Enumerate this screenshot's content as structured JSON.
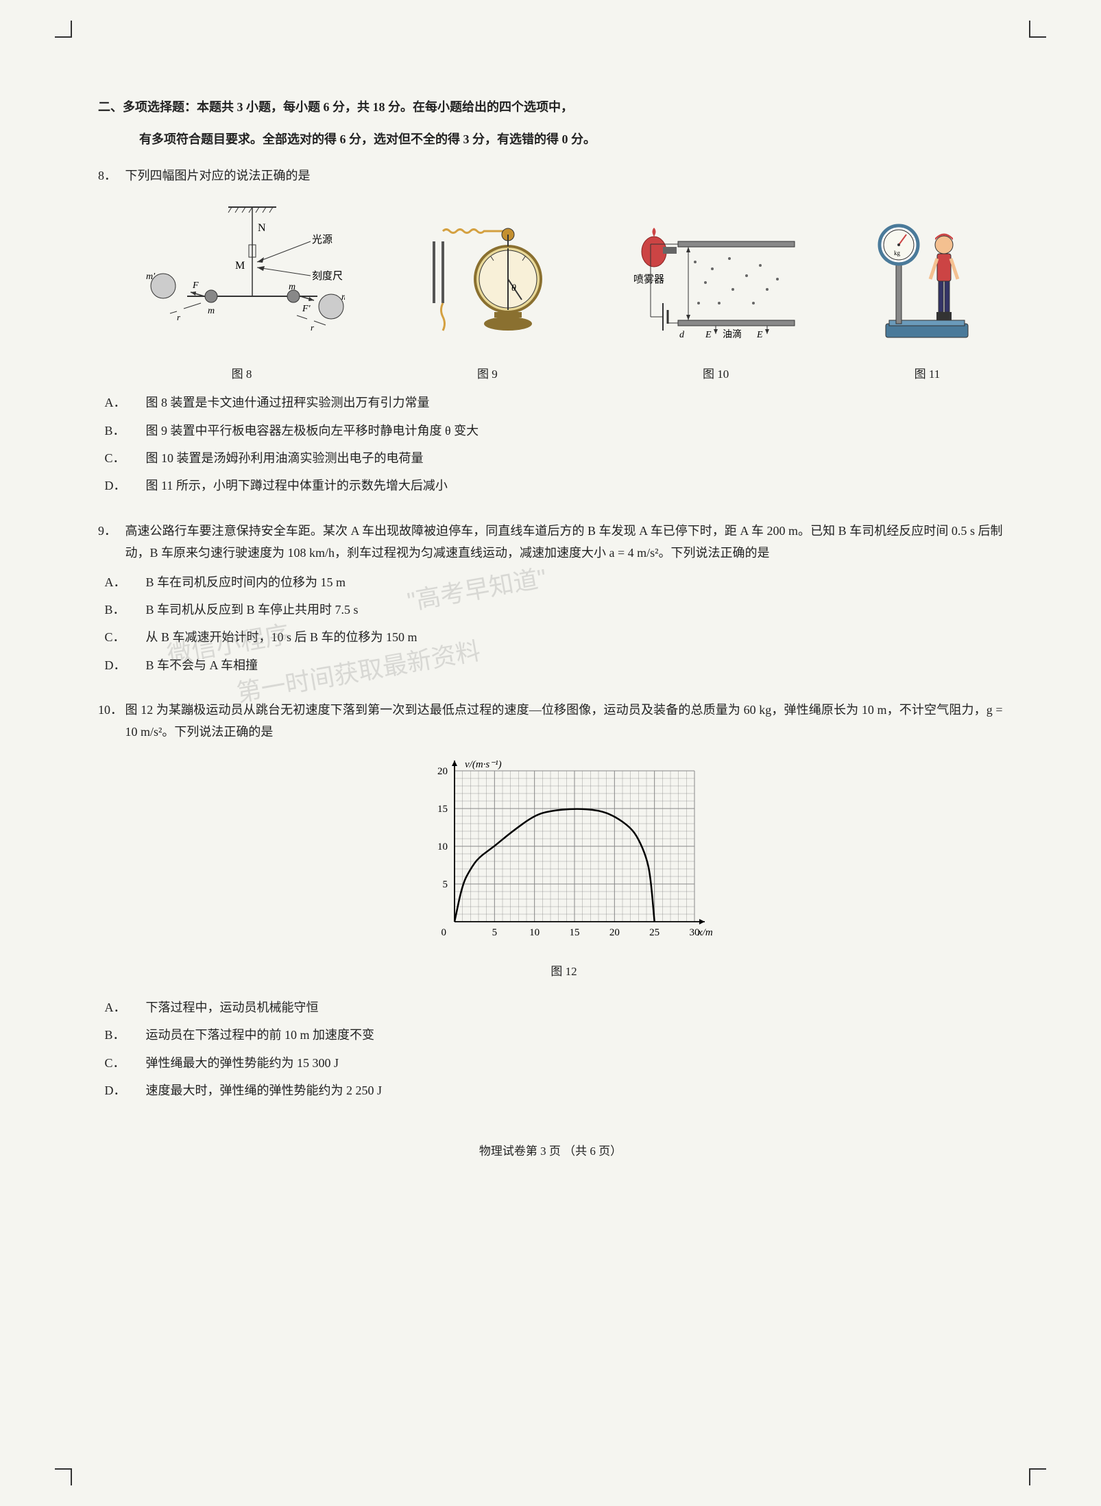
{
  "section": {
    "title": "二、多项选择题：本题共 3 小题，每小题 6 分，共 18 分。在每小题给出的四个选项中，",
    "subtitle": "有多项符合题目要求。全部选对的得 6 分，选对但不全的得 3 分，有选错的得 0 分。"
  },
  "q8": {
    "num": "8．",
    "text": "下列四幅图片对应的说法正确的是",
    "fig8": {
      "caption": "图 8",
      "labels": {
        "N": "N",
        "M": "M",
        "m": "m",
        "mprime": "m'",
        "F": "F",
        "Fprime": "F'",
        "r": "r",
        "light": "光源",
        "scale": "刻度尺"
      }
    },
    "fig9": {
      "caption": "图 9",
      "theta": "θ"
    },
    "fig10": {
      "caption": "图 10",
      "labels": {
        "sprayer": "喷雾器",
        "d": "d",
        "E1": "E",
        "oil": "油滴",
        "E2": "E"
      }
    },
    "fig11": {
      "caption": "图 11",
      "kg": "kg"
    },
    "options": {
      "A": "图 8 装置是卡文迪什通过扭秤实验测出万有引力常量",
      "B": "图 9 装置中平行板电容器左极板向左平移时静电计角度 θ 变大",
      "C": "图 10 装置是汤姆孙利用油滴实验测出电子的电荷量",
      "D": "图 11 所示，小明下蹲过程中体重计的示数先增大后减小"
    }
  },
  "q9": {
    "num": "9．",
    "text1": "高速公路行车要注意保持安全车距。某次 A 车出现故障被迫停车，同直线车道后方的 B 车发现 A 车已停下时，距 A 车 200 m。已知 B 车司机经反应时间 0.5 s 后制动，B 车原来匀速行驶速度为 108 km/h，刹车过程视为匀减速直线运动，减速加速度大小 a = 4 m/s²。下列说法正确的是",
    "options": {
      "A": "B 车在司机反应时间内的位移为 15 m",
      "B": "B 车司机从反应到 B 车停止共用时 7.5 s",
      "C": "从 B 车减速开始计时，10 s 后 B 车的位移为 150 m",
      "D": "B 车不会与 A 车相撞"
    }
  },
  "q10": {
    "num": "10．",
    "text": "图 12 为某蹦极运动员从跳台无初速度下落到第一次到达最低点过程的速度—位移图像，运动员及装备的总质量为 60 kg，弹性绳原长为 10 m，不计空气阻力，g = 10 m/s²。下列说法正确的是",
    "chart": {
      "ylabel": "v/(m·s⁻¹)",
      "xlabel": "x/m",
      "caption": "图 12",
      "xmax": 30,
      "ymax": 20,
      "xticks": [
        0,
        5,
        10,
        15,
        20,
        25,
        30
      ],
      "yticks": [
        0,
        5,
        10,
        15,
        20
      ],
      "curve_points": [
        [
          0,
          0
        ],
        [
          1,
          5
        ],
        [
          2,
          7
        ],
        [
          3,
          8.5
        ],
        [
          5,
          10
        ],
        [
          7,
          11.8
        ],
        [
          10,
          14.1
        ],
        [
          12,
          14.7
        ],
        [
          15,
          15
        ],
        [
          18,
          14.8
        ],
        [
          20,
          14
        ],
        [
          22,
          12.5
        ],
        [
          23,
          11
        ],
        [
          24,
          8.5
        ],
        [
          24.5,
          6
        ],
        [
          25,
          0
        ]
      ],
      "line_color": "#000000",
      "grid_color": "#888888",
      "bg_color": "#ffffff"
    },
    "options": {
      "A": "下落过程中，运动员机械能守恒",
      "B": "运动员在下落过程中的前 10 m 加速度不变",
      "C": "弹性绳最大的弹性势能约为 15 300 J",
      "D": "速度最大时，弹性绳的弹性势能约为 2 250 J"
    }
  },
  "footer": "物理试卷第 3 页 （共 6 页）",
  "watermarks": {
    "w1": "微信小程序",
    "w2": "\"高考早知道\"",
    "w3": "第一时间获取最新资料"
  }
}
